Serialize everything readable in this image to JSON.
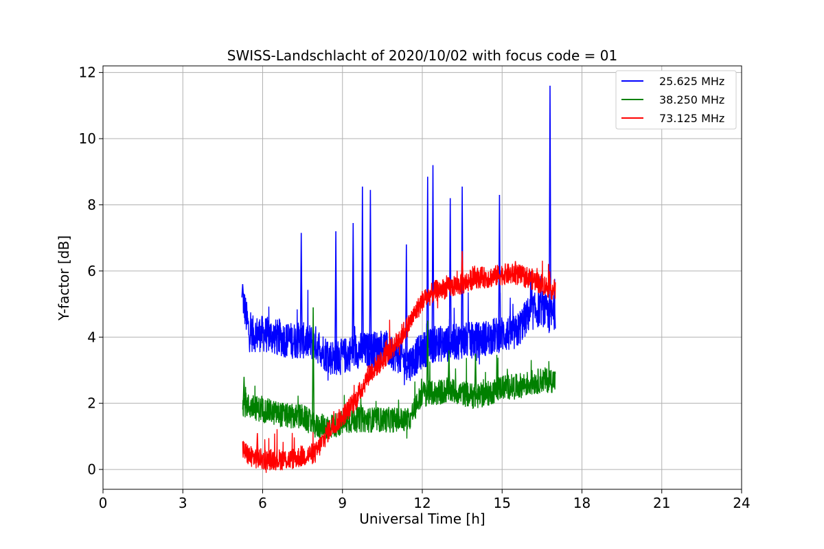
{
  "chart_data": {
    "type": "line",
    "title": "SWISS-Landschlacht of 2020/10/02 with focus code = 01",
    "xlabel": "Universal Time [h]",
    "ylabel": "Y-factor [dB]",
    "xlim": [
      0,
      24
    ],
    "ylim": [
      -0.6,
      12.2
    ],
    "xticks": [
      "0",
      "3",
      "6",
      "9",
      "12",
      "15",
      "18",
      "21",
      "24"
    ],
    "yticks": [
      "0",
      "2",
      "4",
      "6",
      "8",
      "10",
      "12"
    ],
    "grid": true,
    "legend_position": "top-right",
    "series": [
      {
        "name": "25.625 MHz",
        "color": "#0000ff",
        "x": [
          5.25,
          5.5,
          6.0,
          6.5,
          7.0,
          7.5,
          8.0,
          8.5,
          9.0,
          9.5,
          10.0,
          10.5,
          11.0,
          11.5,
          12.0,
          12.5,
          13.0,
          13.5,
          14.0,
          14.5,
          15.0,
          15.5,
          16.0,
          16.5,
          16.8,
          17.0
        ],
        "y": [
          5.2,
          4.1,
          4.1,
          4.0,
          3.9,
          3.9,
          3.8,
          3.4,
          3.4,
          3.6,
          3.6,
          3.7,
          3.5,
          3.2,
          3.6,
          3.8,
          3.8,
          3.9,
          3.9,
          4.0,
          4.1,
          4.1,
          4.7,
          4.9,
          4.6,
          4.8
        ],
        "spikes": [
          {
            "x": 5.25,
            "y": 5.6
          },
          {
            "x": 7.45,
            "y": 7.15
          },
          {
            "x": 8.75,
            "y": 7.2
          },
          {
            "x": 9.4,
            "y": 7.45
          },
          {
            "x": 9.75,
            "y": 8.55
          },
          {
            "x": 10.05,
            "y": 8.45
          },
          {
            "x": 11.4,
            "y": 6.8
          },
          {
            "x": 12.2,
            "y": 8.85
          },
          {
            "x": 12.4,
            "y": 9.2
          },
          {
            "x": 13.05,
            "y": 8.2
          },
          {
            "x": 13.5,
            "y": 8.55
          },
          {
            "x": 14.9,
            "y": 8.3
          },
          {
            "x": 16.8,
            "y": 11.6
          }
        ]
      },
      {
        "name": "38.250 MHz",
        "color": "#008000",
        "x": [
          5.25,
          5.5,
          6.0,
          6.5,
          7.0,
          7.5,
          8.0,
          8.5,
          9.0,
          9.5,
          10.0,
          10.5,
          11.0,
          11.5,
          12.0,
          12.5,
          13.0,
          13.5,
          14.0,
          14.5,
          15.0,
          15.5,
          16.0,
          16.5,
          17.0
        ],
        "y": [
          2.0,
          1.9,
          1.8,
          1.7,
          1.6,
          1.6,
          1.3,
          1.3,
          1.4,
          1.5,
          1.5,
          1.5,
          1.5,
          1.5,
          2.3,
          2.3,
          2.4,
          2.3,
          2.2,
          2.3,
          2.5,
          2.5,
          2.6,
          2.7,
          2.7
        ],
        "spikes": [
          {
            "x": 5.3,
            "y": 2.8
          },
          {
            "x": 7.9,
            "y": 4.9
          },
          {
            "x": 12.2,
            "y": 4.5
          },
          {
            "x": 13.0,
            "y": 3.6
          },
          {
            "x": 14.0,
            "y": 3.5
          }
        ]
      },
      {
        "name": "73.125 MHz",
        "color": "#ff0000",
        "x": [
          5.25,
          5.5,
          6.0,
          6.5,
          7.0,
          7.5,
          8.0,
          8.5,
          9.0,
          9.5,
          10.0,
          10.5,
          11.0,
          11.5,
          12.0,
          12.5,
          13.0,
          13.5,
          14.0,
          14.5,
          15.0,
          15.5,
          16.0,
          16.5,
          17.0
        ],
        "y": [
          0.6,
          0.4,
          0.3,
          0.3,
          0.3,
          0.4,
          0.5,
          1.2,
          1.6,
          2.1,
          2.9,
          3.3,
          3.8,
          4.4,
          5.1,
          5.4,
          5.5,
          5.6,
          5.8,
          5.8,
          5.9,
          5.9,
          5.8,
          5.6,
          5.4
        ],
        "spikes": [
          {
            "x": 5.8,
            "y": 1.1
          },
          {
            "x": 13.5,
            "y": 6.6
          },
          {
            "x": 15.5,
            "y": 6.3
          }
        ]
      }
    ]
  }
}
